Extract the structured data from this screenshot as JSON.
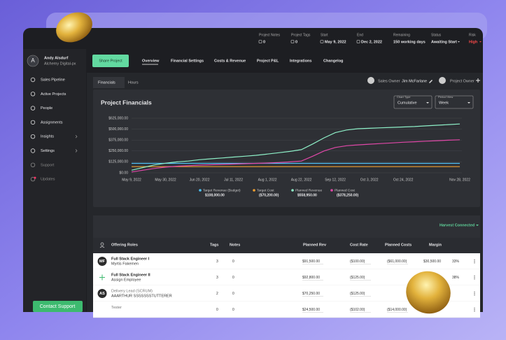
{
  "header": {
    "fields": [
      {
        "label": "Project Notes",
        "value": "0"
      },
      {
        "label": "Project Tags",
        "value": "0"
      },
      {
        "label": "Start",
        "value": "May 9, 2022"
      },
      {
        "label": "End",
        "value": "Dec 2, 2022"
      },
      {
        "label": "Remaining",
        "value": "150 working days"
      },
      {
        "label": "Status",
        "value": "Awaiting Start"
      },
      {
        "label": "Risk",
        "value": "High"
      }
    ]
  },
  "user": {
    "initial": "A",
    "name": "Andy Alsdurf",
    "company": "Alchemy Digital-px"
  },
  "nav": [
    "Sales Pipeline",
    "Active Projects",
    "People",
    "Assignments",
    "Insights",
    "Settings",
    "Support",
    "Updates"
  ],
  "contact_support": "Contact Support",
  "share_project": "Share Project",
  "tabs": [
    "Overview",
    "Financial Settings",
    "Costs & Revenue",
    "Project P&L",
    "Integrations",
    "Changelog"
  ],
  "subtabs": [
    "Financials",
    "Hours"
  ],
  "sales_owner": {
    "label": "Sales Owner",
    "name": "Jim McFarlane"
  },
  "project_owner": "Project Owner",
  "chart_type": {
    "label": "Chart Type",
    "value": "Cumulative"
  },
  "period_view": {
    "label": "Period View",
    "value": "Week"
  },
  "chart_data": {
    "type": "line",
    "title": "Project Financials",
    "categories": [
      "May 9, 2022",
      null,
      null,
      "May 30, 2022",
      null,
      null,
      "Jun 20, 2022",
      null,
      null,
      "Jul 11, 2022",
      null,
      null,
      "Aug 1, 2022",
      null,
      null,
      "Aug 22, 2022",
      null,
      null,
      "Sep 12, 2022",
      null,
      null,
      "Oct 3, 2022",
      null,
      null,
      "Oct 24, 2022",
      null,
      null,
      null,
      null,
      "Nov 28, 2022"
    ],
    "ylim": [
      0,
      625000
    ],
    "yticks": [
      {
        "value": 0,
        "label": "$0.00"
      },
      {
        "value": 125000,
        "label": "$125,000.00"
      },
      {
        "value": 250000,
        "label": "$250,000.00"
      },
      {
        "value": 375000,
        "label": "$375,000.00"
      },
      {
        "value": 500000,
        "label": "$500,000.00"
      },
      {
        "value": 625000,
        "label": "$625,000.00"
      }
    ],
    "grid": true,
    "series": [
      {
        "name": "Target Revenue (Budget)",
        "color": "#4fc3f7",
        "summary": "$108,000.00",
        "values": [
          108000,
          108000,
          108000,
          108000,
          108000,
          108000,
          108000,
          108000,
          108000,
          108000,
          108000,
          108000,
          108000,
          108000,
          108000,
          108000,
          108000,
          108000,
          108000,
          108000,
          108000,
          108000,
          108000,
          108000,
          108000,
          108000,
          108000,
          108000,
          108000,
          108000
        ]
      },
      {
        "name": "Target Cost",
        "color": "#f0a030",
        "summary": "($70,200.00)",
        "values": [
          70200,
          70200,
          70200,
          70200,
          70200,
          70200,
          70200,
          70200,
          70200,
          70200,
          70200,
          70200,
          70200,
          70200,
          70200,
          70200,
          70200,
          70200,
          70200,
          70200,
          70200,
          70200,
          70200,
          70200,
          70200,
          70200,
          70200,
          70200,
          70200,
          70200
        ]
      },
      {
        "name": "Planned Revenue",
        "color": "#8ef0c8",
        "summary": "$558,950.00",
        "values": [
          30000,
          60000,
          90000,
          110000,
          125000,
          135000,
          150000,
          160000,
          170000,
          180000,
          190000,
          200000,
          215000,
          230000,
          245000,
          265000,
          330000,
          400000,
          460000,
          490000,
          505000,
          510000,
          515000,
          520000,
          525000,
          530000,
          538000,
          545000,
          552000,
          558950
        ]
      },
      {
        "name": "Planned Cost",
        "color": "#e048a8",
        "summary": "($378,250.00)",
        "values": [
          10000,
          30000,
          50000,
          65000,
          75000,
          82000,
          88000,
          92000,
          96000,
          100000,
          104000,
          108000,
          112000,
          118000,
          125000,
          135000,
          190000,
          250000,
          290000,
          310000,
          320000,
          328000,
          335000,
          342000,
          350000,
          356000,
          362000,
          368000,
          373000,
          378250
        ]
      }
    ]
  },
  "harvest": "Harvest Connected",
  "table": {
    "columns": [
      "Offering Roles",
      "Tags",
      "Notes",
      "Planned Rev",
      "Cost Rate",
      "Planned Costs",
      "Margin"
    ],
    "rows": [
      {
        "initials": "MF",
        "role": "Full Stack Engineer I",
        "person": "Myrtis Fakemen",
        "tags": "3",
        "notes": "0",
        "planned_rev": "$91,500.00",
        "cost_rate": "($100.00)",
        "planned_costs": "($61,000.00)",
        "margin": "$30,500.00",
        "margin_pct": "33%"
      },
      {
        "role": "Full Stack Engineer II",
        "person": "Assign Employee",
        "tags": "3",
        "notes": "0",
        "planned_rev": "$92,800.00",
        "cost_rate": "($125.00)",
        "margin_pct": "38%"
      },
      {
        "initials": "AS",
        "role": "Delivery Lead (SCRUM)",
        "person": "AAARTHUR SSSSSSSTUTTERER",
        "tags": "2",
        "notes": "0",
        "planned_rev": "$70,250.00",
        "cost_rate": "($125.00)"
      },
      {
        "role": "Tester",
        "tags": "0",
        "notes": "0",
        "planned_rev": "$24,500.00",
        "cost_rate": "($102.00)",
        "planned_costs": "($14,000.00)"
      }
    ]
  }
}
